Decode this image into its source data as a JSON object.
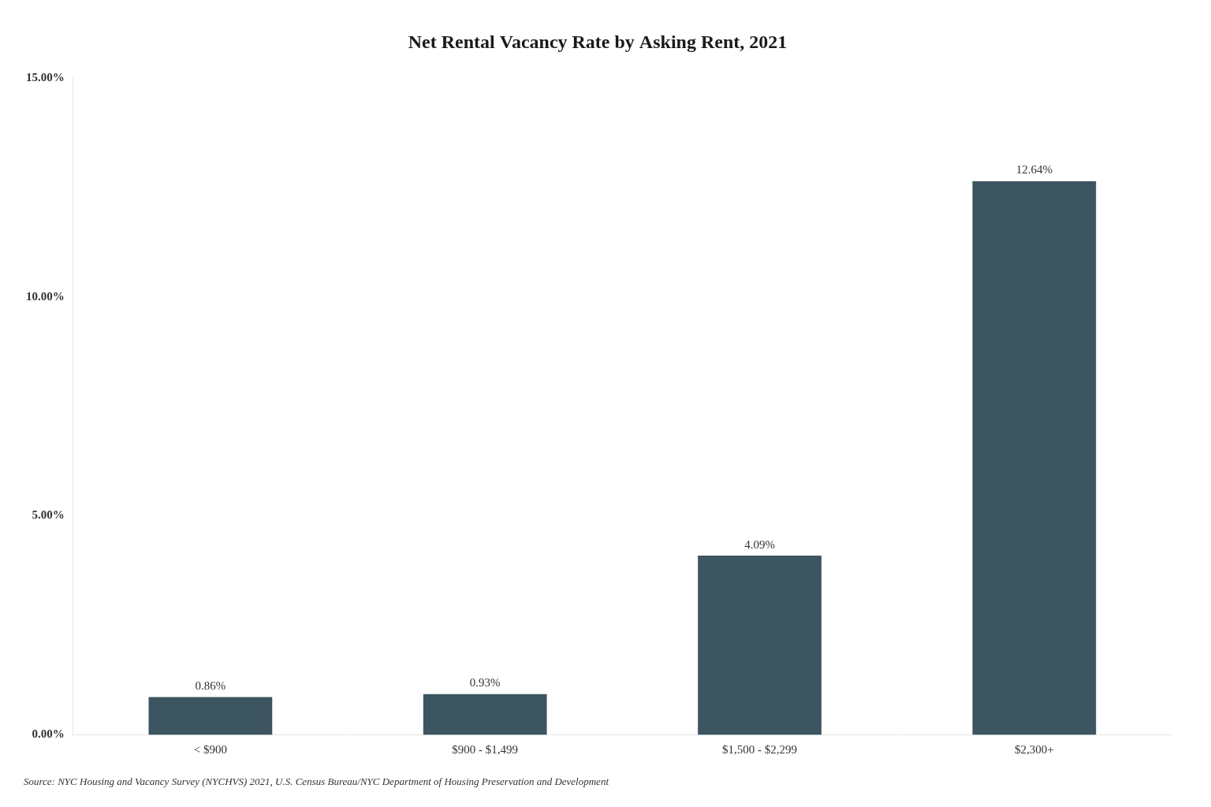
{
  "chart_data": {
    "type": "bar",
    "title": "Net Rental Vacancy Rate by Asking Rent, 2021",
    "categories": [
      "< $900",
      "$900 - $1,499",
      "$1,500 - $2,299",
      "$2,300+"
    ],
    "values": [
      0.86,
      0.93,
      4.09,
      12.64
    ],
    "value_labels": [
      "0.86%",
      "0.93%",
      "4.09%",
      "12.64%"
    ],
    "data_labels": true,
    "color": "#3d5560",
    "ylim": [
      0,
      15
    ],
    "yticks": [
      {
        "value": 0.0,
        "label": "0.00%"
      },
      {
        "value": 5.0,
        "label": "5.00%"
      },
      {
        "value": 10.0,
        "label": "10.00%"
      },
      {
        "value": 15.0,
        "label": "15.00%"
      }
    ],
    "grid": false,
    "source": "Source: NYC Housing and Vacancy Survey (NYCHVS) 2021, U.S. Census Bureau/NYC Department of Housing Preservation and Development"
  }
}
